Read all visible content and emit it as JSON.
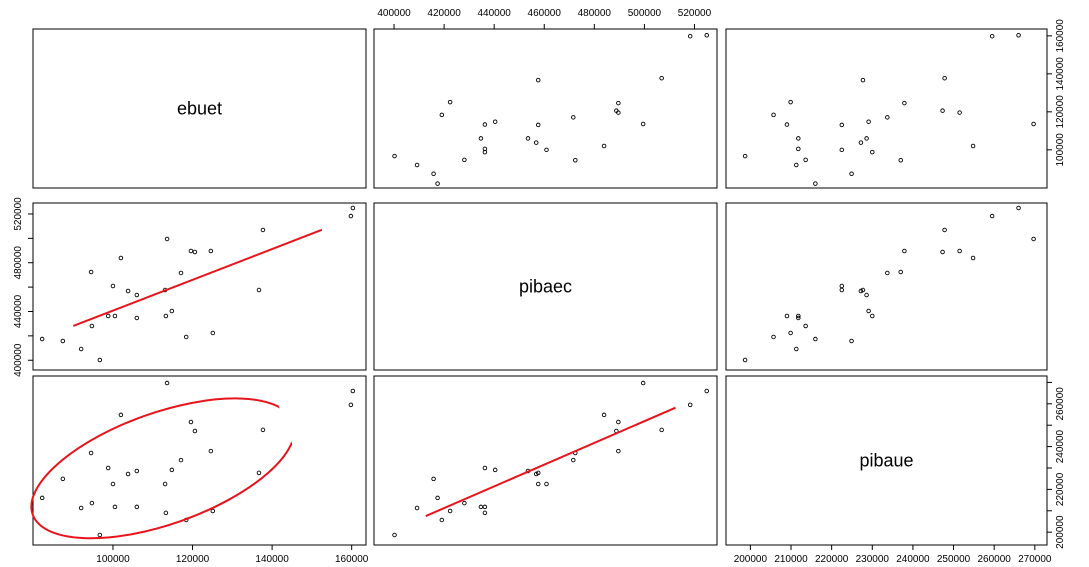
{
  "chart_data": {
    "type": "pairs",
    "point_color": "#000000",
    "fit_color": "#e8141b",
    "variables": [
      {
        "name": "ebuet",
        "lim": [
          79900,
          163600
        ],
        "ticks": [
          100000,
          120000,
          140000,
          160000
        ],
        "values": [
          82200,
          87400,
          92000,
          94500,
          94700,
          96700,
          98800,
          100000,
          100500,
          102000,
          103800,
          106000,
          106000,
          113100,
          113300,
          113600,
          114800,
          117100,
          118400,
          119600,
          120600,
          124600,
          125100,
          136700,
          137700,
          159800,
          160300
        ]
      },
      {
        "name": "pibaec",
        "lim": [
          392000,
          529000
        ],
        "ticks": [
          400000,
          420000,
          440000,
          460000,
          480000,
          500000,
          520000
        ],
        "values": [
          417400,
          415800,
          409200,
          472400,
          428100,
          400200,
          436300,
          460900,
          436300,
          483900,
          456800,
          453500,
          434700,
          457600,
          436300,
          499500,
          440400,
          471600,
          419100,
          489600,
          488800,
          489600,
          422400,
          457600,
          506900,
          518300,
          524900
        ]
      },
      {
        "name": "pibaue",
        "lim": [
          194000,
          273000
        ],
        "ticks": [
          200000,
          210000,
          220000,
          230000,
          240000,
          250000,
          260000,
          270000
        ],
        "values": [
          216000,
          224900,
          211300,
          237000,
          213600,
          198700,
          230000,
          222500,
          211800,
          254800,
          227200,
          228600,
          211800,
          222500,
          209000,
          269700,
          229100,
          233700,
          205700,
          251500,
          247300,
          237900,
          209900,
          227700,
          247800,
          259500,
          266000
        ]
      }
    ]
  }
}
